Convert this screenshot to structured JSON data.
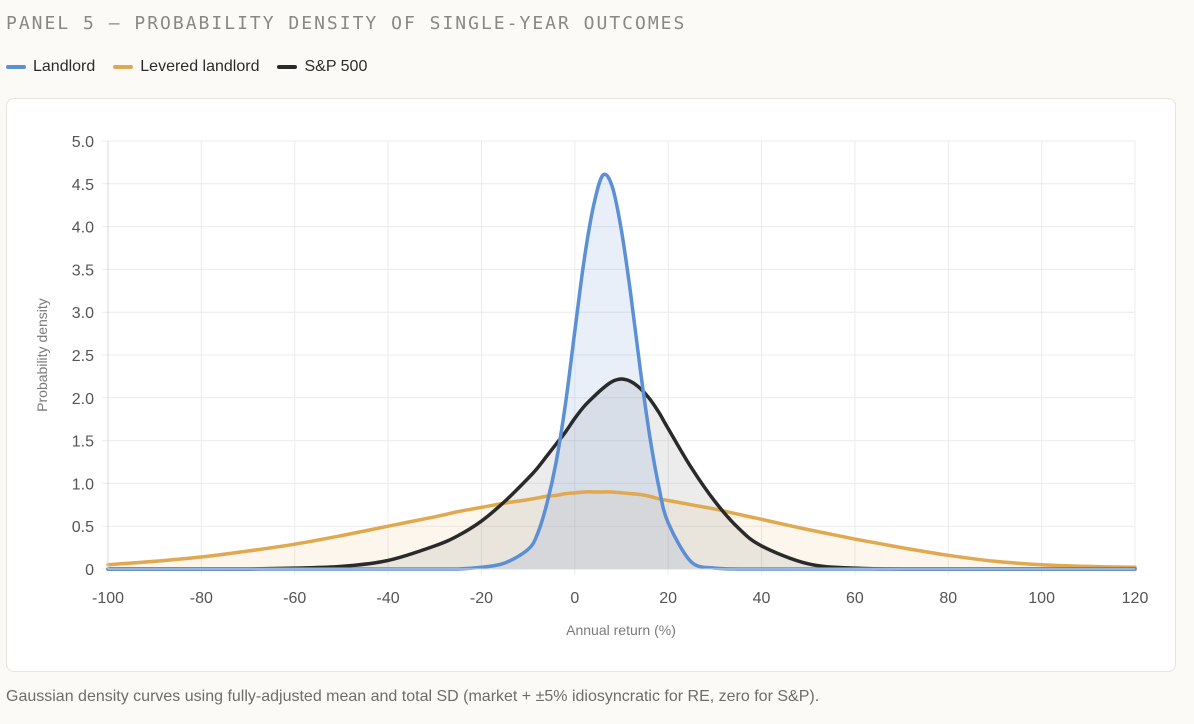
{
  "panel": {
    "title": "PANEL 5 — PROBABILITY DENSITY OF SINGLE-YEAR OUTCOMES",
    "caption": "Gaussian density curves using fully-adjusted mean and total SD (market + ±5% idiosyncratic for RE, zero for S&P)."
  },
  "chart_data": {
    "type": "area",
    "xlabel": "Annual return (%)",
    "ylabel": "Probability density",
    "xlim": [
      -100,
      120
    ],
    "ylim": [
      0,
      5
    ],
    "x_ticks": [
      "-100",
      "-80",
      "-60",
      "-40",
      "-20",
      "0",
      "20",
      "40",
      "60",
      "80",
      "100",
      "120"
    ],
    "y_ticks": [
      "0",
      "0.5",
      "1.0",
      "1.5",
      "2.0",
      "2.5",
      "3.0",
      "3.5",
      "4.0",
      "4.5",
      "5.0"
    ],
    "grid": true,
    "legend_position": "top-left",
    "x": [
      -100,
      -90,
      -80,
      -70,
      -60,
      -50,
      -40,
      -30,
      -25,
      -20,
      -15,
      -10,
      -8,
      -6,
      -4,
      -2,
      0,
      2,
      4,
      6,
      8,
      10,
      12,
      14,
      16,
      18,
      20,
      25,
      30,
      35,
      40,
      50,
      60,
      70,
      80,
      90,
      100,
      110,
      120
    ],
    "series": [
      {
        "name": "Landlord",
        "color": "#5b8fd6",
        "fill": "rgba(91,143,214,0.14)",
        "values": [
          0,
          0,
          0,
          0,
          0,
          0,
          0,
          0,
          0,
          0.02,
          0.07,
          0.23,
          0.41,
          0.76,
          1.25,
          1.93,
          2.78,
          3.61,
          4.24,
          4.6,
          4.47,
          3.95,
          3.2,
          2.34,
          1.57,
          0.96,
          0.54,
          0.08,
          0.01,
          0,
          0,
          0,
          0,
          0,
          0,
          0,
          0,
          0,
          0
        ]
      },
      {
        "name": "Levered landlord",
        "color": "#e0a84f",
        "fill": "rgba(224,168,79,0.10)",
        "values": [
          0.05,
          0.09,
          0.14,
          0.21,
          0.29,
          0.39,
          0.5,
          0.61,
          0.67,
          0.72,
          0.77,
          0.81,
          0.83,
          0.85,
          0.86,
          0.88,
          0.89,
          0.9,
          0.9,
          0.9,
          0.9,
          0.89,
          0.88,
          0.87,
          0.85,
          0.82,
          0.8,
          0.75,
          0.7,
          0.64,
          0.58,
          0.46,
          0.35,
          0.25,
          0.16,
          0.09,
          0.05,
          0.03,
          0.02
        ]
      },
      {
        "name": "S&P 500",
        "color": "#2a2a2a",
        "fill": "rgba(120,120,120,0.14)",
        "values": [
          0,
          0,
          0,
          0,
          0.01,
          0.03,
          0.1,
          0.27,
          0.39,
          0.56,
          0.79,
          1.06,
          1.18,
          1.32,
          1.46,
          1.6,
          1.76,
          1.9,
          2.01,
          2.11,
          2.19,
          2.22,
          2.19,
          2.11,
          1.99,
          1.83,
          1.64,
          1.18,
          0.79,
          0.48,
          0.27,
          0.06,
          0.01,
          0,
          0,
          0,
          0,
          0,
          0
        ]
      }
    ]
  }
}
